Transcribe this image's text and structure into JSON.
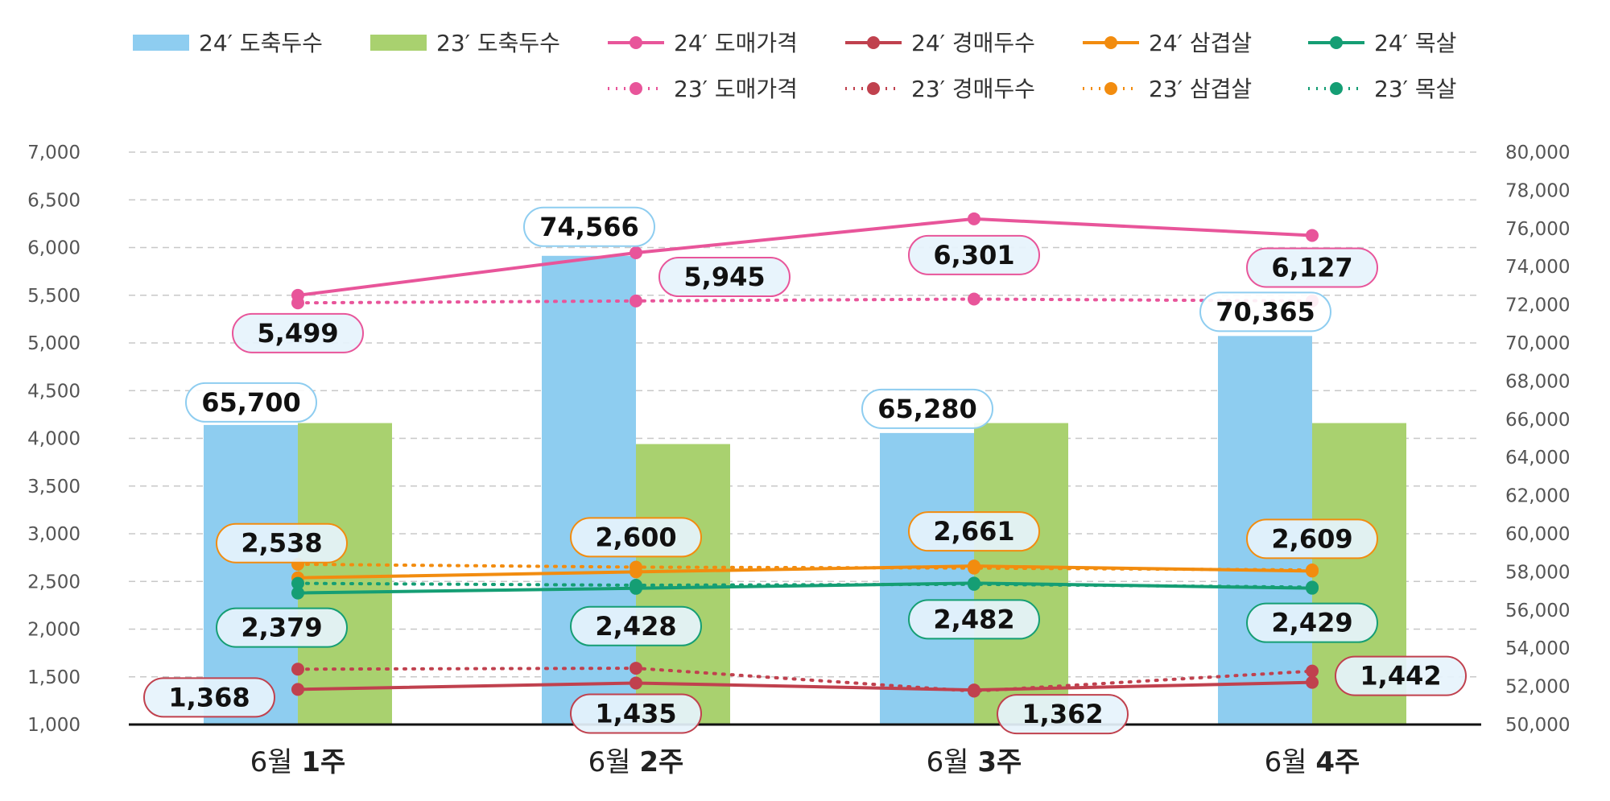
{
  "chart_data": {
    "type": "bar",
    "categories": [
      {
        "prefix": "6월",
        "bold": "1주"
      },
      {
        "prefix": "6월",
        "bold": "2주"
      },
      {
        "prefix": "6월",
        "bold": "3주"
      },
      {
        "prefix": "6월",
        "bold": "4주"
      }
    ],
    "left_axis": {
      "ylim": [
        1000,
        7000
      ],
      "step": 500,
      "ticks": [
        "1,000",
        "1,500",
        "2,000",
        "2,500",
        "3,000",
        "3,500",
        "4,000",
        "4,500",
        "5,000",
        "5,500",
        "6,000",
        "6,500",
        "7,000"
      ]
    },
    "right_axis": {
      "ylim": [
        50000,
        80000
      ],
      "step": 2000,
      "ticks": [
        "50,000",
        "52,000",
        "54,000",
        "56,000",
        "58,000",
        "60,000",
        "62,000",
        "64,000",
        "66,000",
        "68,000",
        "70,000",
        "72,000",
        "74,000",
        "76,000",
        "78,000",
        "80,000"
      ]
    },
    "grid": true,
    "legend_position": "top",
    "bar_series": [
      {
        "name": "24′ 도축두수",
        "axis": "right",
        "color": "#8ecdf0",
        "label_border": "#8ecdf0",
        "values": [
          65700,
          74566,
          65280,
          70365
        ],
        "labels": [
          "65,700",
          "74,566",
          "65,280",
          "70,365"
        ]
      },
      {
        "name": "23′ 도축두수",
        "axis": "right",
        "color": "#a9d16f",
        "values": [
          65800,
          64700,
          65800,
          65800
        ]
      }
    ],
    "line_series": [
      {
        "name": "24′ 도매가격",
        "axis": "left",
        "color": "#e8559a",
        "style": "solid",
        "values": [
          5499,
          5945,
          6301,
          6127
        ],
        "labels": [
          "5,499",
          "5,945",
          "6,301",
          "6,127"
        ]
      },
      {
        "name": "23′ 도매가격",
        "axis": "left",
        "color": "#e8559a",
        "style": "dotted",
        "values": [
          5420,
          5440,
          5460,
          5440
        ]
      },
      {
        "name": "24′ 경매두수",
        "axis": "left",
        "color": "#c0414e",
        "style": "solid",
        "values": [
          1368,
          1435,
          1362,
          1442
        ],
        "labels": [
          "1,368",
          "1,435",
          "1,362",
          "1,442"
        ]
      },
      {
        "name": "23′ 경매두수",
        "axis": "left",
        "color": "#c0414e",
        "style": "dotted",
        "values": [
          1580,
          1590,
          1350,
          1560
        ]
      },
      {
        "name": "24′ 삼겹살",
        "axis": "left",
        "color": "#f28c0f",
        "style": "solid",
        "values": [
          2538,
          2600,
          2661,
          2609
        ],
        "labels": [
          "2,538",
          "2,600",
          "2,661",
          "2,609"
        ]
      },
      {
        "name": "23′ 삼겹살",
        "axis": "left",
        "color": "#f28c0f",
        "style": "dotted",
        "values": [
          2680,
          2650,
          2640,
          2620
        ]
      },
      {
        "name": "24′ 목살",
        "axis": "left",
        "color": "#159e74",
        "style": "solid",
        "values": [
          2379,
          2428,
          2482,
          2429
        ],
        "labels": [
          "2,379",
          "2,428",
          "2,482",
          "2,429"
        ]
      },
      {
        "name": "23′ 목살",
        "axis": "left",
        "color": "#159e74",
        "style": "dotted",
        "values": [
          2480,
          2460,
          2470,
          2440
        ]
      }
    ]
  }
}
